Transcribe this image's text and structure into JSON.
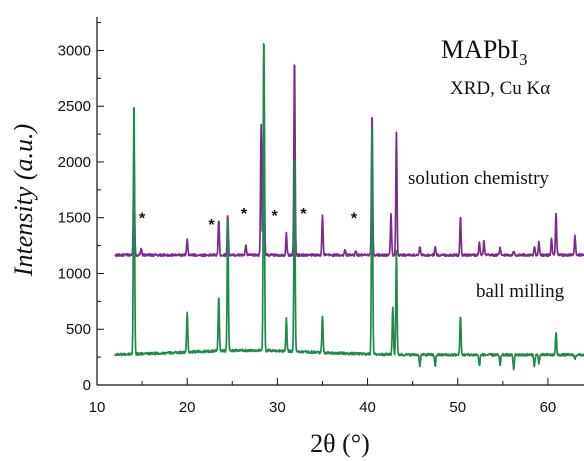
{
  "chart_data": {
    "type": "line",
    "title": {
      "main": "MAPbI",
      "sub": "3",
      "method": "XRD, Cu Kα"
    },
    "xlabel": "2θ (°)",
    "ylabel": "Intensity (a.u.)",
    "xlim": [
      10,
      64
    ],
    "ylim": [
      0,
      3300
    ],
    "x_ticks": [
      10,
      20,
      30,
      40,
      50,
      60
    ],
    "y_ticks": [
      0,
      500,
      1000,
      1500,
      2000,
      2500,
      3000
    ],
    "grid": false,
    "series": [
      {
        "name": "solution chemistry",
        "color": "#7b2a8e",
        "baseline": 1165,
        "x_start": 12,
        "x_end": 64,
        "peaks": [
          {
            "x": 14.1,
            "y": 2100
          },
          {
            "x": 14.9,
            "y": 1220
          },
          {
            "x": 20.0,
            "y": 1300
          },
          {
            "x": 23.5,
            "y": 1480
          },
          {
            "x": 24.5,
            "y": 1530
          },
          {
            "x": 26.5,
            "y": 1250
          },
          {
            "x": 28.2,
            "y": 2330
          },
          {
            "x": 28.5,
            "y": 3010
          },
          {
            "x": 31.0,
            "y": 1360
          },
          {
            "x": 31.9,
            "y": 2960
          },
          {
            "x": 35.0,
            "y": 1520
          },
          {
            "x": 37.5,
            "y": 1210
          },
          {
            "x": 38.7,
            "y": 1200
          },
          {
            "x": 40.5,
            "y": 2460
          },
          {
            "x": 42.6,
            "y": 1530
          },
          {
            "x": 43.2,
            "y": 2270
          },
          {
            "x": 45.8,
            "y": 1240
          },
          {
            "x": 47.5,
            "y": 1240
          },
          {
            "x": 50.3,
            "y": 1510
          },
          {
            "x": 52.4,
            "y": 1280
          },
          {
            "x": 52.9,
            "y": 1290
          },
          {
            "x": 54.7,
            "y": 1230
          },
          {
            "x": 56.2,
            "y": 1200
          },
          {
            "x": 58.5,
            "y": 1240
          },
          {
            "x": 59.0,
            "y": 1280
          },
          {
            "x": 60.4,
            "y": 1320
          },
          {
            "x": 60.9,
            "y": 1550
          },
          {
            "x": 63.0,
            "y": 1340
          }
        ]
      },
      {
        "name": "ball milling",
        "color": "#1e8b4a",
        "baseline": 270,
        "x_start": 12,
        "x_end": 64,
        "peaks": [
          {
            "x": 14.1,
            "y": 2590
          },
          {
            "x": 20.0,
            "y": 620
          },
          {
            "x": 23.5,
            "y": 760
          },
          {
            "x": 24.5,
            "y": 1490
          },
          {
            "x": 28.5,
            "y": 3150
          },
          {
            "x": 31.0,
            "y": 560
          },
          {
            "x": 31.9,
            "y": 2070
          },
          {
            "x": 35.0,
            "y": 600
          },
          {
            "x": 40.5,
            "y": 2410
          },
          {
            "x": 42.8,
            "y": 700
          },
          {
            "x": 43.2,
            "y": 1200
          },
          {
            "x": 45.8,
            "y": 170
          },
          {
            "x": 47.5,
            "y": 170
          },
          {
            "x": 50.3,
            "y": 620
          },
          {
            "x": 52.4,
            "y": 170
          },
          {
            "x": 54.7,
            "y": 170
          },
          {
            "x": 56.2,
            "y": 140
          },
          {
            "x": 58.5,
            "y": 170
          },
          {
            "x": 59.0,
            "y": 200
          },
          {
            "x": 60.9,
            "y": 470
          },
          {
            "x": 63.0,
            "y": 230
          }
        ]
      }
    ],
    "annotations": {
      "series_labels": [
        "solution chemistry",
        "ball milling"
      ],
      "impurity_markers": [
        {
          "text": "*",
          "x": 15.0,
          "y": 1450
        },
        {
          "text": "*",
          "x": 22.7,
          "y": 1390
        },
        {
          "text": "*",
          "x": 26.3,
          "y": 1490
        },
        {
          "text": "*",
          "x": 29.7,
          "y": 1470
        },
        {
          "text": "*",
          "x": 32.9,
          "y": 1490
        },
        {
          "text": "*",
          "x": 38.5,
          "y": 1450
        }
      ]
    }
  }
}
